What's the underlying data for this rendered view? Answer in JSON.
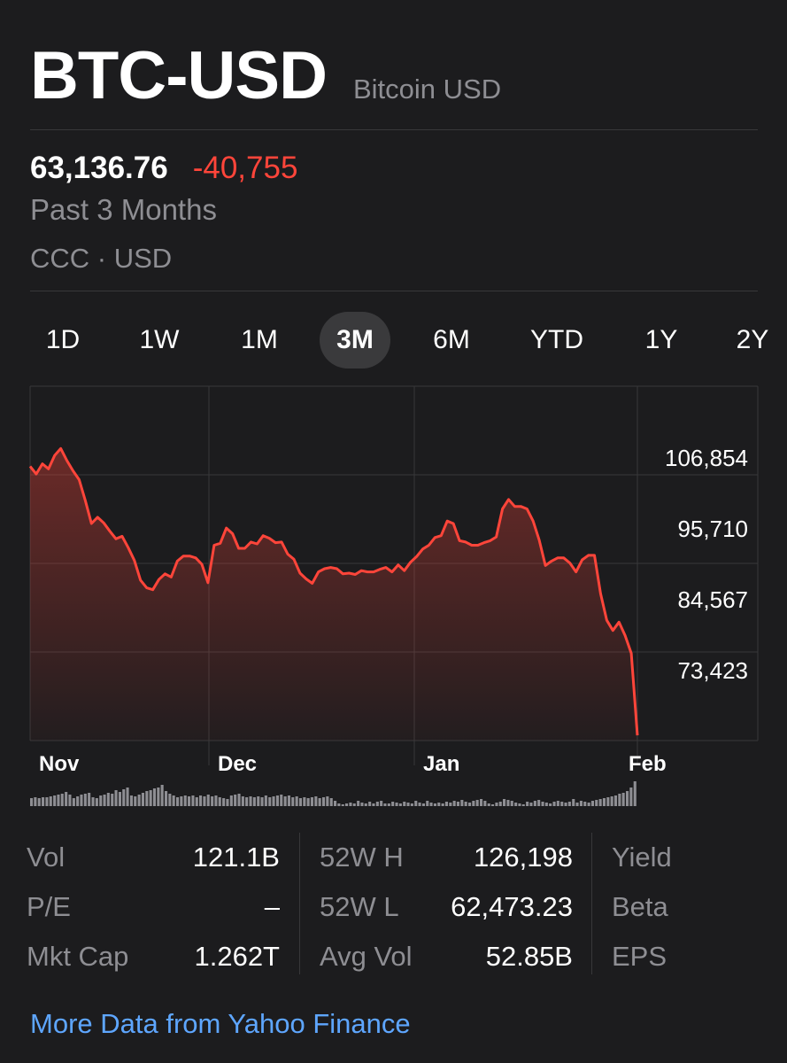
{
  "header": {
    "symbol": "BTC-USD",
    "name": "Bitcoin USD"
  },
  "quote": {
    "price": "63,136.76",
    "change": "-40,755",
    "period": "Past 3 Months",
    "exchange": "CCC · USD"
  },
  "tabs": [
    {
      "label": "1D",
      "active": false
    },
    {
      "label": "1W",
      "active": false
    },
    {
      "label": "1M",
      "active": false
    },
    {
      "label": "3M",
      "active": true
    },
    {
      "label": "6M",
      "active": false
    },
    {
      "label": "YTD",
      "active": false
    },
    {
      "label": "1Y",
      "active": false
    },
    {
      "label": "2Y",
      "active": false
    }
  ],
  "colors": {
    "background": "#1c1c1e",
    "line": "#ff453a",
    "gridline": "#38383a",
    "secondary_text": "#8e8e93",
    "link": "#5ea6ff",
    "active_tab": "#3a3a3c"
  },
  "chart_data": {
    "type": "area",
    "x_ticks": [
      "Nov",
      "Dec",
      "Jan",
      "Feb"
    ],
    "y_ticks": [
      106854,
      95710,
      84567,
      73423
    ],
    "y_tick_labels": [
      "106,854",
      "95,710",
      "84,567",
      "73,423"
    ],
    "ylim": [
      62280,
      117997
    ],
    "grid": true,
    "legend": "none",
    "series": [
      {
        "values": [
          105400,
          104200,
          105800,
          105000,
          107100,
          108200,
          106300,
          104700,
          103300,
          100000,
          96400,
          97400,
          96500,
          95200,
          94000,
          94400,
          92600,
          90600,
          87500,
          86300,
          86000,
          87600,
          88500,
          88000,
          90500,
          91300,
          91300,
          91000,
          90000,
          87100,
          93000,
          93300,
          95700,
          94800,
          92500,
          92500,
          93500,
          93200,
          94500,
          94100,
          93400,
          93500,
          91600,
          90800,
          88600,
          87700,
          87000,
          88800,
          89300,
          89500,
          89300,
          88500,
          88600,
          88400,
          89000,
          88800,
          88800,
          89200,
          89500,
          88800,
          89900,
          89000,
          90300,
          91200,
          92400,
          93000,
          94200,
          94500,
          96800,
          96400,
          93700,
          93500,
          93000,
          93000,
          93400,
          93700,
          94300,
          98700,
          100200,
          99100,
          99100,
          98700,
          96800,
          93800,
          89800,
          90500,
          91000,
          91000,
          90200,
          88800,
          90700,
          91400,
          91400,
          85400,
          81200,
          79600,
          80900,
          78800,
          76000,
          63100
        ]
      }
    ]
  },
  "volume_bars": [
    9,
    10,
    9,
    10,
    10,
    11,
    12,
    13,
    14,
    16,
    13,
    9,
    11,
    13,
    14,
    15,
    10,
    9,
    12,
    13,
    15,
    14,
    18,
    16,
    19,
    21,
    12,
    11,
    13,
    15,
    17,
    18,
    20,
    21,
    24,
    17,
    14,
    12,
    10,
    11,
    12,
    11,
    12,
    10,
    12,
    11,
    13,
    11,
    12,
    10,
    9,
    8,
    12,
    13,
    14,
    11,
    10,
    11,
    10,
    11,
    10,
    12,
    10,
    11,
    12,
    13,
    11,
    12,
    10,
    11,
    9,
    10,
    9,
    10,
    11,
    9,
    10,
    11,
    9,
    6,
    3,
    2,
    3,
    4,
    3,
    6,
    4,
    3,
    5,
    3,
    5,
    6,
    3,
    3,
    5,
    4,
    3,
    5,
    4,
    3,
    6,
    4,
    3,
    6,
    4,
    3,
    4,
    3,
    5,
    4,
    6,
    5,
    7,
    5,
    4,
    6,
    7,
    8,
    6,
    3,
    2,
    4,
    5,
    8,
    7,
    6,
    4,
    3,
    2,
    5,
    4,
    6,
    7,
    5,
    4,
    3,
    5,
    6,
    5,
    4,
    5,
    8,
    4,
    6,
    5,
    4,
    6,
    7,
    8,
    9,
    10,
    11,
    12,
    14,
    15,
    17,
    21,
    28
  ],
  "stats": [
    [
      {
        "label": "Vol",
        "value": "121.1B"
      },
      {
        "label": "P/E",
        "value": "–"
      },
      {
        "label": "Mkt Cap",
        "value": "1.262T"
      }
    ],
    [
      {
        "label": "52W H",
        "value": "126,198"
      },
      {
        "label": "52W L",
        "value": "62,473.23"
      },
      {
        "label": "Avg Vol",
        "value": "52.85B"
      }
    ],
    [
      {
        "label": "Yield",
        "value": ""
      },
      {
        "label": "Beta",
        "value": ""
      },
      {
        "label": "EPS",
        "value": ""
      }
    ]
  ],
  "footer": {
    "link": "More Data from Yahoo Finance"
  }
}
